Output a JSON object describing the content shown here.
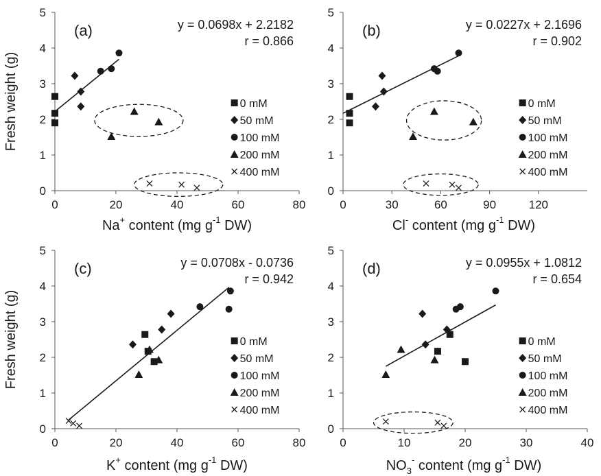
{
  "chart_data": [
    {
      "type": "scatter",
      "panel_label": "(a)",
      "xlabel": {
        "pre": "Na",
        "sup": "+",
        "post": " content (mg g",
        "sup2": "-1",
        "post2": " DW)"
      },
      "ylabel": "Fresh weight (g)",
      "xlim": [
        0,
        80
      ],
      "ylim": [
        0,
        5
      ],
      "xticks": [
        "0",
        "20",
        "40",
        "60",
        "80"
      ],
      "yticks": [
        "0",
        "1",
        "2",
        "3",
        "4",
        "5"
      ],
      "equation": "y = 0.0698x + 2.2182",
      "r_text": "r = 0.866",
      "fit": {
        "slope": 0.0698,
        "intercept": 2.2182,
        "x_range": [
          0,
          21
        ]
      },
      "series": [
        {
          "name": "0 mM",
          "marker": "square",
          "points": [
            [
              0,
              2.64
            ],
            [
              0,
              2.17
            ],
            [
              0,
              1.9
            ]
          ]
        },
        {
          "name": "50 mM",
          "marker": "diamond",
          "points": [
            [
              6.5,
              3.22
            ],
            [
              8.5,
              2.78
            ],
            [
              8.5,
              2.36
            ]
          ]
        },
        {
          "name": "100 mM",
          "marker": "circle",
          "points": [
            [
              15,
              3.35
            ],
            [
              18.5,
              3.42
            ],
            [
              21,
              3.86
            ]
          ]
        },
        {
          "name": "200 mM",
          "marker": "triangle",
          "points": [
            [
              18.5,
              1.52
            ],
            [
              26,
              2.22
            ],
            [
              34,
              1.93
            ]
          ]
        },
        {
          "name": "400 mM",
          "marker": "x",
          "points": [
            [
              31,
              0.2
            ],
            [
              41.5,
              0.17
            ],
            [
              46.5,
              0.08
            ]
          ]
        }
      ],
      "ellipses": [
        {
          "cx": 27.5,
          "cy": 1.97,
          "rx": 14.5,
          "ry": 0.45
        },
        {
          "cx": 40.5,
          "cy": 0.17,
          "rx": 14.5,
          "ry": 0.33
        }
      ]
    },
    {
      "type": "scatter",
      "panel_label": "(b)",
      "xlabel": {
        "pre": "Cl",
        "sup": "-",
        "post": " content (mg g",
        "sup2": "-1",
        "post2": " DW)"
      },
      "ylabel": "",
      "xlim": [
        0,
        150
      ],
      "ylim": [
        0,
        5
      ],
      "xticks": [
        "0",
        "30",
        "60",
        "90",
        "120"
      ],
      "yticks": [
        "0",
        "1",
        "2",
        "3",
        "4",
        "5"
      ],
      "equation": "y = 0.0227x + 2.1696",
      "r_text": "r = 0.902",
      "fit": {
        "slope": 0.0227,
        "intercept": 2.1696,
        "x_range": [
          0,
          72
        ]
      },
      "series": [
        {
          "name": "0 mM",
          "marker": "square",
          "points": [
            [
              4,
              2.64
            ],
            [
              4,
              2.17
            ],
            [
              4,
              1.9
            ]
          ]
        },
        {
          "name": "50 mM",
          "marker": "diamond",
          "points": [
            [
              20,
              2.36
            ],
            [
              24,
              3.22
            ],
            [
              25,
              2.78
            ]
          ]
        },
        {
          "name": "100 mM",
          "marker": "circle",
          "points": [
            [
              56,
              3.42
            ],
            [
              58,
              3.35
            ],
            [
              71,
              3.86
            ]
          ]
        },
        {
          "name": "200 mM",
          "marker": "triangle",
          "points": [
            [
              43,
              1.52
            ],
            [
              56,
              2.22
            ],
            [
              80,
              1.93
            ]
          ]
        },
        {
          "name": "400 mM",
          "marker": "x",
          "points": [
            [
              51,
              0.2
            ],
            [
              67,
              0.17
            ],
            [
              71,
              0.08
            ]
          ]
        }
      ],
      "ellipses": [
        {
          "cx": 62,
          "cy": 1.97,
          "rx": 23,
          "ry": 0.55
        },
        {
          "cx": 60,
          "cy": 0.17,
          "rx": 23,
          "ry": 0.3
        }
      ]
    },
    {
      "type": "scatter",
      "panel_label": "(c)",
      "xlabel": {
        "pre": "K",
        "sup": "+",
        "post": " content (mg g",
        "sup2": "-1",
        "post2": " DW)"
      },
      "ylabel": "Fresh weight (g)",
      "xlim": [
        0,
        80
      ],
      "ylim": [
        0,
        5
      ],
      "xticks": [
        "0",
        "20",
        "40",
        "60",
        "80"
      ],
      "yticks": [
        "0",
        "1",
        "2",
        "3",
        "4",
        "5"
      ],
      "equation": "y = 0.0708x - 0.0736",
      "r_text": "r = 0.942",
      "fit": {
        "slope": 0.0708,
        "intercept": -0.0736,
        "x_range": [
          4.5,
          57
        ]
      },
      "series": [
        {
          "name": "0 mM",
          "marker": "square",
          "points": [
            [
              29.5,
              2.64
            ],
            [
              30.5,
              2.17
            ],
            [
              32.5,
              1.88
            ]
          ]
        },
        {
          "name": "50 mM",
          "marker": "diamond",
          "points": [
            [
              25.5,
              2.36
            ],
            [
              35,
              2.78
            ],
            [
              38,
              3.22
            ]
          ]
        },
        {
          "name": "100 mM",
          "marker": "circle",
          "points": [
            [
              47.5,
              3.42
            ],
            [
              57,
              3.35
            ],
            [
              57.5,
              3.86
            ]
          ]
        },
        {
          "name": "200 mM",
          "marker": "triangle",
          "points": [
            [
              27.5,
              1.52
            ],
            [
              31,
              2.22
            ],
            [
              34,
              1.93
            ]
          ]
        },
        {
          "name": "400 mM",
          "marker": "x",
          "points": [
            [
              4.5,
              0.22
            ],
            [
              6,
              0.15
            ],
            [
              8,
              0.08
            ]
          ]
        }
      ],
      "ellipses": []
    },
    {
      "type": "scatter",
      "panel_label": "(d)",
      "xlabel": {
        "pre": "NO",
        "sub": "3",
        "sup": "-",
        "post": " content (mg g",
        "sup2": "-1",
        "post2": " DW)"
      },
      "ylabel": "",
      "xlim": [
        0,
        40
      ],
      "ylim": [
        0,
        5
      ],
      "xticks": [
        "0",
        "10",
        "20",
        "30",
        "40"
      ],
      "yticks": [
        "0",
        "1",
        "2",
        "3",
        "4",
        "5"
      ],
      "equation": "y = 0.0955x + 1.0812",
      "r_text": "r = 0.654",
      "fit": {
        "slope": 0.0955,
        "intercept": 1.0812,
        "x_range": [
          7,
          25
        ]
      },
      "series": [
        {
          "name": "0 mM",
          "marker": "square",
          "points": [
            [
              15.5,
              2.17
            ],
            [
              17.5,
              2.64
            ],
            [
              20,
              1.88
            ]
          ]
        },
        {
          "name": "50 mM",
          "marker": "diamond",
          "points": [
            [
              13,
              3.22
            ],
            [
              13.5,
              2.36
            ],
            [
              17,
              2.78
            ]
          ]
        },
        {
          "name": "100 mM",
          "marker": "circle",
          "points": [
            [
              18.5,
              3.35
            ],
            [
              19.2,
              3.42
            ],
            [
              25,
              3.86
            ]
          ]
        },
        {
          "name": "200 mM",
          "marker": "triangle",
          "points": [
            [
              7,
              1.52
            ],
            [
              9.5,
              2.22
            ],
            [
              15,
              1.93
            ]
          ]
        },
        {
          "name": "400 mM",
          "marker": "x",
          "points": [
            [
              7,
              0.2
            ],
            [
              15.5,
              0.17
            ],
            [
              16.5,
              0.08
            ]
          ]
        }
      ],
      "ellipses": [
        {
          "cx": 11.5,
          "cy": 0.17,
          "rx": 6.5,
          "ry": 0.3
        }
      ]
    }
  ]
}
